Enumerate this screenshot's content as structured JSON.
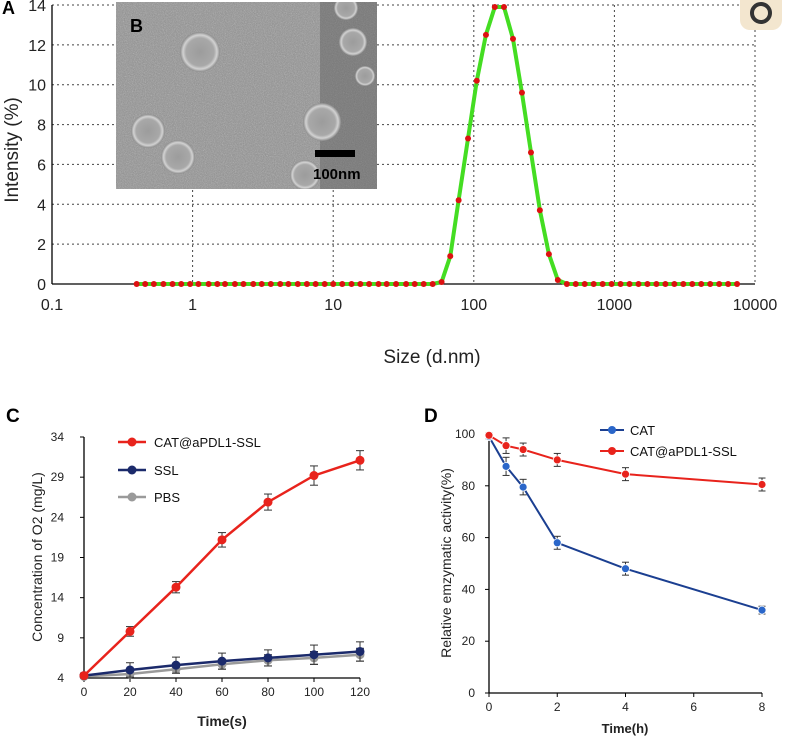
{
  "panels": {
    "A": "A",
    "B": "B",
    "C": "C",
    "D": "D"
  },
  "inset": {
    "scale_label": "100nm"
  },
  "chart_data": [
    {
      "id": "A",
      "type": "line",
      "xscale": "log",
      "xlabel": "Size (d.nm)",
      "ylabel": "Intensity (%)",
      "xlim": [
        0.1,
        10000
      ],
      "ylim": [
        0,
        14
      ],
      "xticks": [
        "0.1",
        "1",
        "10",
        "100",
        "1000",
        "10000"
      ],
      "yticks": [
        "0",
        "2",
        "4",
        "6",
        "8",
        "10",
        "12",
        "14"
      ],
      "grid": true,
      "series": [
        {
          "color": "#44dd22",
          "marker_color": "#dd1111",
          "x": [
            0.4,
            0.46,
            0.53,
            0.62,
            0.72,
            0.83,
            0.96,
            1.1,
            1.3,
            1.5,
            1.7,
            2.0,
            2.3,
            2.7,
            3.1,
            3.6,
            4.2,
            4.8,
            5.6,
            6.5,
            7.5,
            8.7,
            10,
            11.6,
            13.5,
            15.6,
            18,
            21,
            24,
            28,
            33,
            38,
            44,
            51,
            59,
            68,
            78,
            91,
            105,
            122,
            141,
            164,
            190,
            220,
            255,
            295,
            342,
            396,
            459,
            531,
            615,
            712,
            825,
            955,
            1106,
            1281,
            1484,
            1718,
            1990,
            2305,
            2670,
            3091,
            3580,
            4145,
            4801,
            5560,
            6439,
            7456
          ],
          "y": [
            0,
            0,
            0,
            0,
            0,
            0,
            0,
            0,
            0,
            0,
            0,
            0,
            0,
            0,
            0,
            0,
            0,
            0,
            0,
            0,
            0,
            0,
            0,
            0,
            0,
            0,
            0,
            0,
            0,
            0,
            0,
            0,
            0,
            0,
            0.1,
            1.4,
            4.2,
            7.3,
            10.2,
            12.5,
            13.9,
            13.9,
            12.3,
            9.6,
            6.6,
            3.7,
            1.5,
            0.2,
            0,
            0,
            0,
            0,
            0,
            0,
            0,
            0,
            0,
            0,
            0,
            0,
            0,
            0,
            0,
            0,
            0,
            0,
            0,
            0
          ]
        }
      ]
    },
    {
      "id": "C",
      "type": "line",
      "xlabel": "Time(s)",
      "ylabel": "Concentration of O2 (mg/L)",
      "xlim": [
        0,
        120
      ],
      "ylim": [
        4,
        34
      ],
      "xticks": [
        "0",
        "20",
        "40",
        "60",
        "80",
        "100",
        "120"
      ],
      "yticks": [
        "4",
        "9",
        "14",
        "19",
        "24",
        "29",
        "34"
      ],
      "series": [
        {
          "name": "CAT@aPDL1-SSL",
          "color": "#e8231c",
          "x": [
            0,
            20,
            40,
            60,
            80,
            100,
            120
          ],
          "y": [
            4.3,
            9.8,
            15.3,
            21.2,
            25.9,
            29.2,
            31.1
          ],
          "err": [
            0.3,
            0.6,
            0.7,
            0.9,
            1.0,
            1.2,
            1.2
          ]
        },
        {
          "name": "SSL",
          "color": "#1b2a6b",
          "x": [
            0,
            20,
            40,
            60,
            80,
            100,
            120
          ],
          "y": [
            4.3,
            5.0,
            5.6,
            6.1,
            6.5,
            6.9,
            7.3
          ],
          "err": [
            0.2,
            0.9,
            1.0,
            1.0,
            1.0,
            1.2,
            1.2
          ]
        },
        {
          "name": "PBS",
          "color": "#9a9a9a",
          "x": [
            0,
            20,
            40,
            60,
            80,
            100,
            120
          ],
          "y": [
            4.2,
            4.5,
            5.1,
            5.7,
            6.2,
            6.5,
            6.9
          ],
          "err": [
            0.2,
            0.4,
            0.5,
            0.6,
            0.7,
            0.8,
            0.8
          ]
        }
      ]
    },
    {
      "id": "D",
      "type": "line",
      "xlabel": "Time(h)",
      "ylabel": "Relative emzymatic activity(%)",
      "xlim": [
        0,
        8
      ],
      "ylim": [
        0,
        100
      ],
      "xticks": [
        "0",
        "2",
        "4",
        "6",
        "8"
      ],
      "yticks": [
        "0",
        "20",
        "40",
        "60",
        "80",
        "100"
      ],
      "series": [
        {
          "name": "CAT",
          "color": "#1b3f91",
          "marker_color": "#2a66c9",
          "x": [
            0,
            0.5,
            1,
            2,
            4,
            8
          ],
          "y": [
            99,
            87.5,
            79.5,
            58,
            48,
            32
          ],
          "err": [
            1,
            3.5,
            3,
            2.5,
            2.5,
            1.5
          ]
        },
        {
          "name": "CAT@aPDL1-SSL",
          "color": "#e8231c",
          "marker_color": "#e8231c",
          "x": [
            0,
            0.5,
            1,
            2,
            4,
            8
          ],
          "y": [
            99.5,
            95.5,
            94,
            90,
            84.5,
            80.5
          ],
          "err": [
            1,
            3,
            2.5,
            2.5,
            2.5,
            2.5
          ]
        }
      ]
    }
  ]
}
